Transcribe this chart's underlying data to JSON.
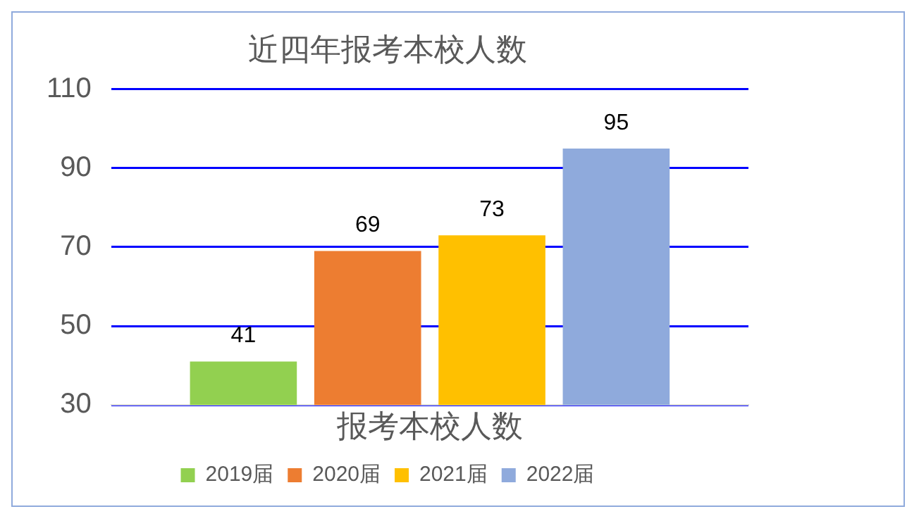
{
  "chart_data": {
    "type": "bar",
    "title": "近四年报考本校人数",
    "categories": [
      "报考本校人数"
    ],
    "series": [
      {
        "name": "2019届",
        "color": "#92d050",
        "values": [
          41
        ]
      },
      {
        "name": "2020届",
        "color": "#ed7d31",
        "values": [
          69
        ]
      },
      {
        "name": "2021届",
        "color": "#ffc000",
        "values": [
          73
        ]
      },
      {
        "name": "2022届",
        "color": "#8faadc",
        "values": [
          95
        ]
      }
    ],
    "ylim": [
      30,
      110
    ],
    "yticks": [
      30,
      50,
      70,
      90,
      110
    ],
    "grid": "y",
    "legend": "bottom",
    "data_labels": true
  }
}
